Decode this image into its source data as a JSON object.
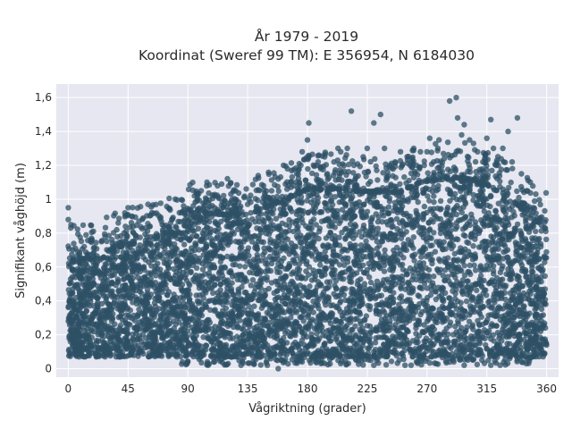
{
  "chart_data": {
    "type": "scatter",
    "title_lines": [
      "År 1979 - 2019",
      "Koordinat (Sweref 99 TM): E 356954, N 6184030"
    ],
    "xlabel": "Vågriktning (grader)",
    "ylabel": "Signifikant våghöjd (m)",
    "xlim": [
      -9,
      369
    ],
    "ylim": [
      -0.05,
      1.68
    ],
    "x_ticks": [
      0,
      45,
      90,
      135,
      180,
      225,
      270,
      315,
      360
    ],
    "x_tick_labels": [
      "0",
      "45",
      "90",
      "135",
      "180",
      "225",
      "270",
      "315",
      "360"
    ],
    "y_ticks": [
      0,
      0.2,
      0.4,
      0.6,
      0.8,
      1.0,
      1.2,
      1.4,
      1.6
    ],
    "y_tick_labels": [
      "0",
      "0,2",
      "0,4",
      "0,6",
      "0,8",
      "1",
      "1,2",
      "1,4",
      "1,6"
    ],
    "grid": true,
    "legend": "none",
    "colors": {
      "marker": "#2e5066",
      "plot_background": "#e6e7f0",
      "grid": "#ffffff"
    },
    "marker_opacity": 0.75,
    "upper_envelope": [
      [
        0,
        0.62
      ],
      [
        20,
        0.66
      ],
      [
        40,
        0.72
      ],
      [
        60,
        0.76
      ],
      [
        85,
        0.8
      ],
      [
        90,
        0.88
      ],
      [
        100,
        0.92
      ],
      [
        130,
        0.9
      ],
      [
        150,
        0.95
      ],
      [
        165,
        1.0
      ],
      [
        180,
        1.06
      ],
      [
        200,
        1.06
      ],
      [
        225,
        1.04
      ],
      [
        250,
        1.04
      ],
      [
        265,
        1.1
      ],
      [
        285,
        1.12
      ],
      [
        300,
        1.12
      ],
      [
        315,
        1.08
      ],
      [
        330,
        1.02
      ],
      [
        345,
        0.92
      ],
      [
        360,
        0.82
      ]
    ],
    "lower_bound": 0.07,
    "outliers": [
      [
        0,
        0.95
      ],
      [
        0,
        0.88
      ],
      [
        2,
        0.85
      ],
      [
        12,
        0.72
      ],
      [
        18,
        0.76
      ],
      [
        25,
        0.75
      ],
      [
        42,
        0.8
      ],
      [
        45,
        0.95
      ],
      [
        48,
        0.9
      ],
      [
        60,
        0.97
      ],
      [
        70,
        0.87
      ],
      [
        78,
        0.88
      ],
      [
        85,
        0.92
      ],
      [
        95,
        1.02
      ],
      [
        100,
        1.05
      ],
      [
        104,
        1.0
      ],
      [
        110,
        1.02
      ],
      [
        118,
        0.99
      ],
      [
        126,
        1.05
      ],
      [
        135,
        0.97
      ],
      [
        148,
        1.0
      ],
      [
        153,
        1.05
      ],
      [
        158,
        1.12
      ],
      [
        162,
        1.2
      ],
      [
        165,
        1.18
      ],
      [
        170,
        1.08
      ],
      [
        172,
        1.15
      ],
      [
        175,
        1.2
      ],
      [
        176,
        1.28
      ],
      [
        180,
        1.35
      ],
      [
        181,
        1.45
      ],
      [
        188,
        1.22
      ],
      [
        190,
        1.18
      ],
      [
        193,
        1.25
      ],
      [
        195,
        1.15
      ],
      [
        200,
        1.22
      ],
      [
        203,
        1.3
      ],
      [
        205,
        1.28
      ],
      [
        210,
        1.3
      ],
      [
        213,
        1.52
      ],
      [
        215,
        1.2
      ],
      [
        222,
        1.25
      ],
      [
        225,
        1.3
      ],
      [
        230,
        1.45
      ],
      [
        235,
        1.5
      ],
      [
        238,
        1.3
      ],
      [
        242,
        1.2
      ],
      [
        246,
        1.22
      ],
      [
        250,
        1.28
      ],
      [
        255,
        1.25
      ],
      [
        260,
        1.3
      ],
      [
        262,
        1.2
      ],
      [
        265,
        1.28
      ],
      [
        268,
        1.2
      ],
      [
        270,
        1.28
      ],
      [
        272,
        1.36
      ],
      [
        275,
        1.22
      ],
      [
        279,
        1.35
      ],
      [
        283,
        1.24
      ],
      [
        287,
        1.58
      ],
      [
        292,
        1.6
      ],
      [
        293,
        1.48
      ],
      [
        296,
        1.38
      ],
      [
        298,
        1.44
      ],
      [
        302,
        1.35
      ],
      [
        305,
        1.33
      ],
      [
        308,
        1.28
      ],
      [
        312,
        1.22
      ],
      [
        315,
        1.36
      ],
      [
        318,
        1.47
      ],
      [
        320,
        1.3
      ],
      [
        322,
        1.2
      ],
      [
        327,
        1.3
      ],
      [
        331,
        1.4
      ],
      [
        334,
        1.22
      ],
      [
        338,
        1.48
      ],
      [
        341,
        1.15
      ],
      [
        345,
        1.05
      ],
      [
        350,
        0.95
      ],
      [
        355,
        0.88
      ],
      [
        158,
        0.0
      ],
      [
        298,
        0.02
      ],
      [
        318,
        0.02
      ],
      [
        325,
        0.02
      ],
      [
        230,
        0.02
      ],
      [
        205,
        0.03
      ],
      [
        258,
        0.02
      ],
      [
        262,
        0.04
      ],
      [
        130,
        0.02
      ],
      [
        105,
        0.03
      ],
      [
        110,
        0.04
      ],
      [
        176,
        0.04
      ],
      [
        86,
        0.04
      ]
    ]
  }
}
